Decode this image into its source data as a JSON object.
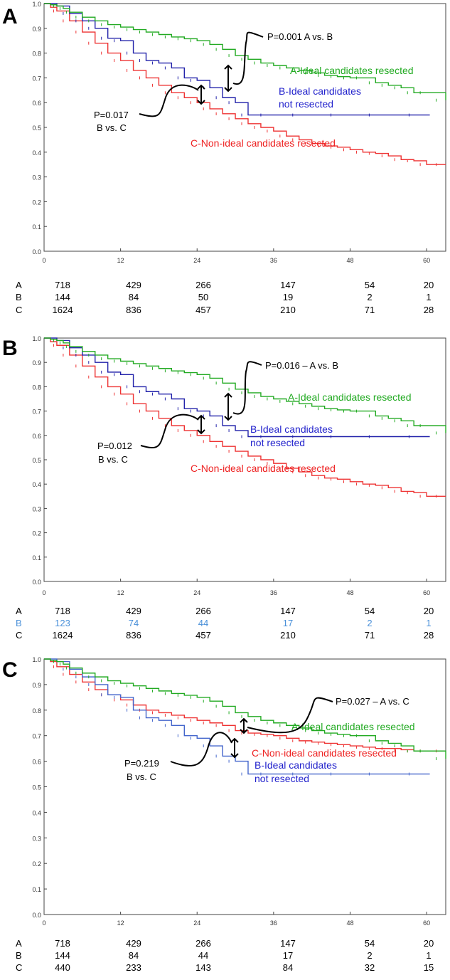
{
  "chart_data": [
    {
      "type": "line",
      "panel_label": "A",
      "xlim": [
        0,
        63
      ],
      "ylim": [
        0,
        1.0
      ],
      "x_ticks": [
        0,
        12,
        24,
        36,
        48,
        60
      ],
      "y_ticks": [
        0.0,
        0.1,
        0.2,
        0.3,
        0.4,
        0.5,
        0.6,
        0.7,
        0.8,
        0.9,
        1.0
      ],
      "y_tick_labels": [
        "0.0",
        "0.1",
        "0.2",
        "0.3",
        "0.4",
        "0.5",
        "0.6",
        "0.7",
        "0.8",
        "0.9",
        "1.0"
      ],
      "grid": false,
      "series": [
        {
          "key": "A",
          "name": "A-Ideal candidates resected",
          "color": "#22aa22",
          "x": [
            0,
            1,
            2,
            3,
            4,
            6,
            8,
            10,
            12,
            14,
            16,
            18,
            20,
            22,
            24,
            26,
            28,
            30,
            32,
            34,
            36,
            38,
            40,
            42,
            44,
            46,
            48,
            50,
            52,
            54,
            56,
            58,
            60,
            63
          ],
          "y": [
            1.0,
            0.995,
            0.99,
            0.98,
            0.965,
            0.945,
            0.93,
            0.915,
            0.905,
            0.895,
            0.885,
            0.875,
            0.865,
            0.858,
            0.85,
            0.835,
            0.815,
            0.79,
            0.775,
            0.76,
            0.75,
            0.74,
            0.73,
            0.72,
            0.71,
            0.705,
            0.7,
            0.7,
            0.68,
            0.67,
            0.66,
            0.64,
            0.64,
            0.61
          ]
        },
        {
          "key": "B",
          "name": "B-Ideal candidates not resected",
          "color": "#2222aa",
          "x": [
            0,
            2,
            4,
            6,
            8,
            10,
            12,
            14,
            16,
            18,
            20,
            22,
            24,
            26,
            28,
            30,
            32,
            36,
            42,
            48,
            54,
            60.5
          ],
          "y": [
            1.0,
            0.99,
            0.96,
            0.93,
            0.9,
            0.86,
            0.85,
            0.8,
            0.77,
            0.76,
            0.74,
            0.7,
            0.69,
            0.66,
            0.62,
            0.6,
            0.55,
            0.55,
            0.55,
            0.55,
            0.55,
            0.55
          ]
        },
        {
          "key": "C",
          "name": "C-Non-ideal candidates resected",
          "color": "#ee3333",
          "x": [
            0,
            1,
            2,
            4,
            6,
            8,
            10,
            12,
            14,
            16,
            18,
            20,
            22,
            24,
            26,
            28,
            30,
            32,
            34,
            36,
            38,
            40,
            42,
            44,
            46,
            48,
            50,
            52,
            54,
            56,
            58,
            60,
            63
          ],
          "y": [
            1.0,
            0.985,
            0.97,
            0.93,
            0.885,
            0.84,
            0.8,
            0.77,
            0.73,
            0.7,
            0.67,
            0.64,
            0.62,
            0.6,
            0.575,
            0.555,
            0.535,
            0.515,
            0.5,
            0.485,
            0.465,
            0.45,
            0.435,
            0.425,
            0.42,
            0.41,
            0.4,
            0.395,
            0.385,
            0.37,
            0.365,
            0.35,
            0.35
          ]
        }
      ],
      "annotations": {
        "label_a": {
          "text": "A-Ideal candidates resected",
          "color": "#22aa22"
        },
        "label_b_line1": {
          "text": "B-Ideal candidates",
          "color": "#2222cc"
        },
        "label_b_line2": {
          "text": "not resected",
          "color": "#2222cc"
        },
        "label_c": {
          "text": "C-Non-ideal candidates resected",
          "color": "#ee2222"
        },
        "p_top": {
          "text": "P=0.001 A vs. B"
        },
        "p_bottom_line1": {
          "text": "P=0.017"
        },
        "p_bottom_line2": {
          "text": "B vs. C"
        }
      },
      "risk_table": {
        "rows": [
          {
            "label": "A",
            "values": [
              "718",
              "429",
              "266",
              "147",
              "54",
              "20"
            ],
            "color": "#000000"
          },
          {
            "label": "B",
            "values": [
              "144",
              "84",
              "50",
              "19",
              "2",
              "1"
            ],
            "color": "#000000"
          },
          {
            "label": "C",
            "values": [
              "1624",
              "836",
              "457",
              "210",
              "71",
              "28"
            ],
            "color": "#000000"
          }
        ]
      }
    },
    {
      "type": "line",
      "panel_label": "B",
      "xlim": [
        0,
        63
      ],
      "ylim": [
        0,
        1.0
      ],
      "x_ticks": [
        0,
        12,
        24,
        36,
        48,
        60
      ],
      "y_ticks": [
        0.0,
        0.1,
        0.2,
        0.3,
        0.4,
        0.5,
        0.6,
        0.7,
        0.8,
        0.9,
        1.0
      ],
      "y_tick_labels": [
        "0.0",
        "0.1",
        "0.2",
        "0.3",
        "0.4",
        "0.5",
        "0.6",
        "0.7",
        "0.8",
        "0.9",
        "1.0"
      ],
      "grid": false,
      "series": [
        {
          "key": "A",
          "name": "A-Ideal candidates resected",
          "color": "#22aa22",
          "x": [
            0,
            1,
            2,
            3,
            4,
            6,
            8,
            10,
            12,
            14,
            16,
            18,
            20,
            22,
            24,
            26,
            28,
            30,
            32,
            34,
            36,
            38,
            40,
            42,
            44,
            46,
            48,
            50,
            52,
            54,
            56,
            58,
            60,
            63
          ],
          "y": [
            1.0,
            0.995,
            0.99,
            0.98,
            0.965,
            0.945,
            0.93,
            0.915,
            0.905,
            0.895,
            0.885,
            0.875,
            0.865,
            0.858,
            0.85,
            0.835,
            0.815,
            0.79,
            0.775,
            0.76,
            0.75,
            0.74,
            0.73,
            0.72,
            0.71,
            0.705,
            0.7,
            0.7,
            0.68,
            0.67,
            0.66,
            0.64,
            0.64,
            0.61
          ]
        },
        {
          "key": "B",
          "name": "B-Ideal candidates not resected",
          "color": "#2222aa",
          "x": [
            0,
            2,
            4,
            6,
            8,
            10,
            12,
            14,
            16,
            18,
            20,
            22,
            24,
            26,
            28,
            30,
            32,
            36,
            42,
            48,
            54,
            60.5
          ],
          "y": [
            1.0,
            0.99,
            0.96,
            0.93,
            0.9,
            0.86,
            0.85,
            0.8,
            0.78,
            0.77,
            0.75,
            0.71,
            0.7,
            0.68,
            0.64,
            0.62,
            0.595,
            0.595,
            0.595,
            0.595,
            0.595,
            0.595
          ]
        },
        {
          "key": "C",
          "name": "C-Non-ideal candidates resected",
          "color": "#ee3333",
          "x": [
            0,
            1,
            2,
            4,
            6,
            8,
            10,
            12,
            14,
            16,
            18,
            20,
            22,
            24,
            26,
            28,
            30,
            32,
            34,
            36,
            38,
            40,
            42,
            44,
            46,
            48,
            50,
            52,
            54,
            56,
            58,
            60,
            63
          ],
          "y": [
            1.0,
            0.985,
            0.97,
            0.93,
            0.885,
            0.84,
            0.8,
            0.77,
            0.73,
            0.7,
            0.67,
            0.64,
            0.62,
            0.6,
            0.575,
            0.555,
            0.535,
            0.515,
            0.5,
            0.485,
            0.465,
            0.45,
            0.435,
            0.425,
            0.42,
            0.41,
            0.4,
            0.395,
            0.385,
            0.37,
            0.365,
            0.35,
            0.35
          ]
        }
      ],
      "annotations": {
        "label_a": {
          "text": "A-Ideal candidates resected",
          "color": "#22aa22"
        },
        "label_b_line1": {
          "text": "B-Ideal candidates",
          "color": "#2222cc"
        },
        "label_b_line2": {
          "text": "not resected",
          "color": "#2222cc"
        },
        "label_c": {
          "text": "C-Non-ideal candidates resected",
          "color": "#ee2222"
        },
        "p_top": {
          "text": "P=0.016 – A vs. B"
        },
        "p_bottom_line1": {
          "text": "P=0.012"
        },
        "p_bottom_line2": {
          "text": "B vs. C"
        }
      },
      "risk_table": {
        "rows": [
          {
            "label": "A",
            "values": [
              "718",
              "429",
              "266",
              "147",
              "54",
              "20"
            ],
            "color": "#000000"
          },
          {
            "label": "B",
            "values": [
              "123",
              "74",
              "44",
              "17",
              "2",
              "1"
            ],
            "color": "#4a90d9"
          },
          {
            "label": "C",
            "values": [
              "1624",
              "836",
              "457",
              "210",
              "71",
              "28"
            ],
            "color": "#000000"
          }
        ]
      }
    },
    {
      "type": "line",
      "panel_label": "C",
      "xlim": [
        0,
        63
      ],
      "ylim": [
        0,
        1.0
      ],
      "x_ticks": [
        0,
        12,
        24,
        36,
        48,
        60
      ],
      "y_ticks": [
        0.0,
        0.1,
        0.2,
        0.3,
        0.4,
        0.5,
        0.6,
        0.7,
        0.8,
        0.9,
        1.0
      ],
      "y_tick_labels": [
        "0.0",
        "0.1",
        "0.2",
        "0.3",
        "0.4",
        "0.5",
        "0.6",
        "0.7",
        "0.8",
        "0.9",
        "1.0"
      ],
      "grid": false,
      "series": [
        {
          "key": "A",
          "name": "A-Ideal candidates resected",
          "color": "#22aa22",
          "x": [
            0,
            1,
            2,
            3,
            4,
            6,
            8,
            10,
            12,
            14,
            16,
            18,
            20,
            22,
            24,
            26,
            28,
            30,
            32,
            34,
            36,
            38,
            40,
            42,
            44,
            46,
            48,
            50,
            52,
            54,
            56,
            58,
            60,
            63
          ],
          "y": [
            1.0,
            0.995,
            0.99,
            0.98,
            0.965,
            0.945,
            0.93,
            0.915,
            0.905,
            0.895,
            0.885,
            0.875,
            0.865,
            0.858,
            0.85,
            0.835,
            0.815,
            0.79,
            0.775,
            0.76,
            0.75,
            0.74,
            0.73,
            0.72,
            0.71,
            0.705,
            0.7,
            0.7,
            0.68,
            0.67,
            0.66,
            0.64,
            0.64,
            0.61
          ]
        },
        {
          "key": "B",
          "name": "B-Ideal candidates not resected",
          "color": "#4466cc",
          "x": [
            0,
            2,
            4,
            6,
            8,
            10,
            12,
            14,
            16,
            18,
            20,
            22,
            24,
            26,
            28,
            30,
            32,
            36,
            42,
            48,
            54,
            60.5
          ],
          "y": [
            1.0,
            0.99,
            0.96,
            0.93,
            0.9,
            0.86,
            0.85,
            0.8,
            0.77,
            0.76,
            0.74,
            0.7,
            0.69,
            0.66,
            0.62,
            0.6,
            0.55,
            0.55,
            0.55,
            0.55,
            0.55,
            0.55
          ]
        },
        {
          "key": "C",
          "name": "C-Non-ideal candidates resected",
          "color": "#ee3333",
          "x": [
            0,
            1,
            2,
            4,
            6,
            8,
            10,
            12,
            14,
            16,
            18,
            20,
            22,
            24,
            26,
            28,
            30,
            32,
            34,
            36,
            38,
            40,
            42,
            44,
            46,
            48,
            50,
            52,
            54,
            56,
            58,
            60,
            63
          ],
          "y": [
            1.0,
            0.99,
            0.97,
            0.94,
            0.91,
            0.88,
            0.86,
            0.84,
            0.82,
            0.8,
            0.79,
            0.78,
            0.77,
            0.76,
            0.75,
            0.74,
            0.72,
            0.71,
            0.705,
            0.7,
            0.69,
            0.68,
            0.675,
            0.67,
            0.665,
            0.66,
            0.655,
            0.65,
            0.65,
            0.645,
            0.64,
            0.64,
            0.64
          ]
        }
      ],
      "annotations": {
        "label_a": {
          "text": "A-Ideal candidates resected",
          "color": "#22aa22"
        },
        "label_b_line1": {
          "text": "B-Ideal candidates",
          "color": "#2222cc"
        },
        "label_b_line2": {
          "text": "not resected",
          "color": "#2222cc"
        },
        "label_c": {
          "text": "C-Non-ideal candidates resected",
          "color": "#ee2222"
        },
        "p_top": {
          "text": "P=0.027 – A vs. C"
        },
        "p_bottom_line1": {
          "text": "P=0.219"
        },
        "p_bottom_line2": {
          "text": "B vs. C"
        }
      },
      "risk_table": {
        "rows": [
          {
            "label": "A",
            "values": [
              "718",
              "429",
              "266",
              "147",
              "54",
              "20"
            ],
            "color": "#000000"
          },
          {
            "label": "B",
            "values": [
              "144",
              "84",
              "44",
              "17",
              "2",
              "1"
            ],
            "color": "#000000"
          },
          {
            "label": "C",
            "values": [
              "440",
              "233",
              "143",
              "84",
              "32",
              "15"
            ],
            "color": "#000000"
          }
        ]
      }
    }
  ]
}
